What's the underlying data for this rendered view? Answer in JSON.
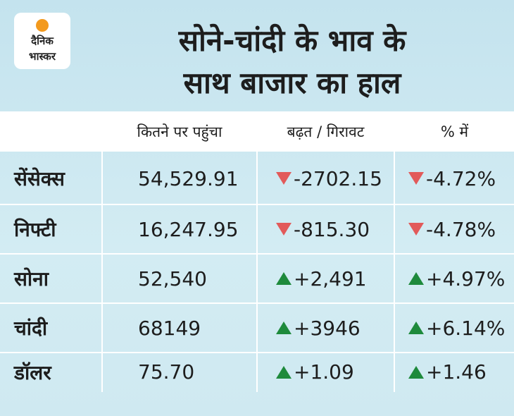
{
  "logo": {
    "line1": "दैनिक",
    "line2": "भास्कर"
  },
  "title": [
    "सोने-चांदी के भाव के",
    "साथ बाजार का हाल"
  ],
  "table": {
    "headers": [
      "कितने पर पहुंचा",
      "बढ़त / गिरावट",
      "% में"
    ],
    "rows": [
      [
        "सेंसेक्स",
        "54,529.91",
        "-2702.15",
        "-4.72%"
      ],
      [
        "निफ्टी",
        "16,247.95",
        "-815.30",
        "-4.78%"
      ],
      [
        "सोना",
        "52,540",
        "+2,491",
        "+4.97%"
      ],
      [
        "चांदी",
        "68149",
        "+3946",
        "+6.14%"
      ],
      [
        "डॉलर",
        "75.70",
        "+1.09",
        "+1.46"
      ]
    ]
  }
}
